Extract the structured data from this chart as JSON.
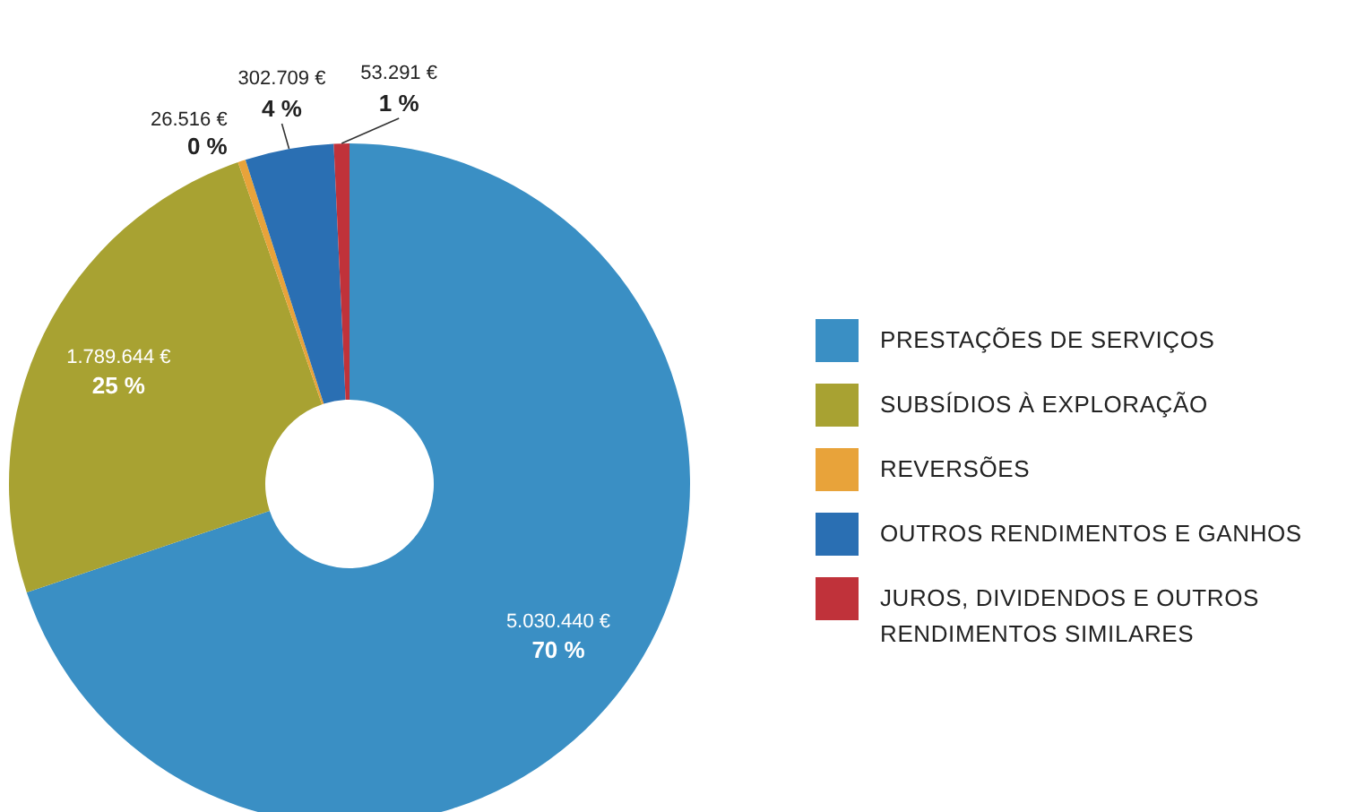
{
  "chart_data": {
    "type": "donut",
    "categories": [
      "PRESTAÇÕES DE SERVIÇOS",
      "SUBSÍDIOS À EXPLORAÇÃO",
      "REVERSÕES",
      "OUTROS RENDIMENTOS E GANHOS",
      "JUROS, DIVIDENDOS E OUTROS RENDIMENTOS SIMILARES"
    ],
    "values": [
      5030440,
      1789644,
      26516,
      302709,
      53291
    ],
    "colors": [
      "#3a8fc4",
      "#a8a232",
      "#e8a33a",
      "#2a6fb3",
      "#c0323a"
    ],
    "value_labels": [
      "5.030.440 €",
      "1.789.644 €",
      "26.516 €",
      "302.709 €",
      "53.291 €"
    ],
    "annotations": [
      {
        "text": "70 %",
        "x": "PRESTAÇÕES DE SERVIÇOS"
      },
      {
        "text": "25 %",
        "x": "SUBSÍDIOS À EXPLORAÇÃO"
      },
      {
        "text": "0 %",
        "x": "REVERSÕES"
      },
      {
        "text": "4 %",
        "x": "OUTROS RENDIMENTOS E GANHOS"
      },
      {
        "text": "1 %",
        "x": "JUROS, DIVIDENDOS E OUTROS RENDIMENTOS SIMILARES"
      }
    ],
    "legend": "right"
  }
}
